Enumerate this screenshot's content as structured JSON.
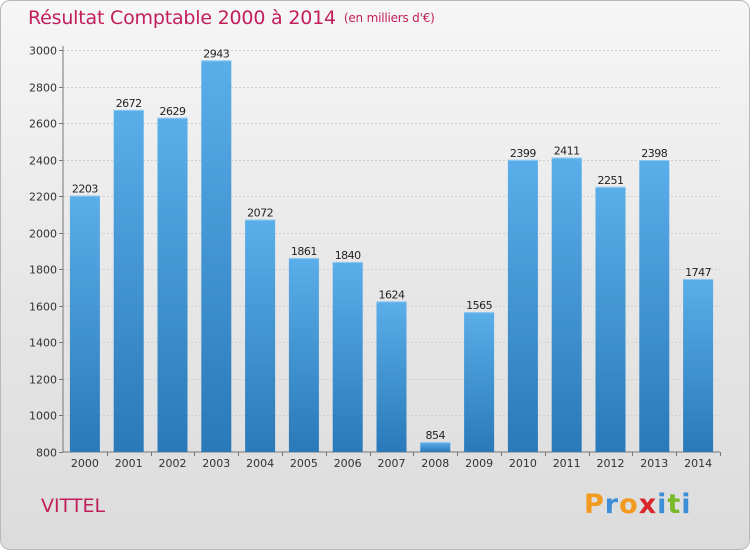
{
  "title": "Résultat Comptable 2000 à 2014",
  "subtitle": "(en milliers d'€)",
  "commune": "VITTEL",
  "logo": {
    "text": "Proxiti",
    "letters": [
      {
        "ch": "P",
        "color": "#f29a1f"
      },
      {
        "ch": "r",
        "color": "#3c8fd6"
      },
      {
        "ch": "o",
        "color": "#f29a1f"
      },
      {
        "ch": "x",
        "color": "#d9262b"
      },
      {
        "ch": "i",
        "color": "#3c8fd6"
      },
      {
        "ch": "t",
        "color": "#79b92a"
      },
      {
        "ch": "i",
        "color": "#3c8fd6"
      }
    ]
  },
  "colors": {
    "accent": "#c21e5c",
    "bar_top": "#5aaee9",
    "bar_bottom": "#2a79b9"
  },
  "chart_data": {
    "type": "bar",
    "title": "Résultat Comptable 2000 à 2014",
    "subtitle": "(en milliers d'€)",
    "categories": [
      "2000",
      "2001",
      "2002",
      "2003",
      "2004",
      "2005",
      "2006",
      "2007",
      "2008",
      "2009",
      "2010",
      "2011",
      "2012",
      "2013",
      "2014"
    ],
    "values": [
      2203,
      2672,
      2629,
      2943,
      2072,
      1861,
      1840,
      1624,
      854,
      1565,
      2399,
      2411,
      2251,
      2398,
      1747
    ],
    "ylim": [
      800,
      3000
    ],
    "yticks": [
      800,
      1000,
      1200,
      1400,
      1600,
      1800,
      2000,
      2200,
      2400,
      2600,
      2800,
      3000
    ],
    "grid": true,
    "data_labels": true,
    "legend": "none"
  }
}
